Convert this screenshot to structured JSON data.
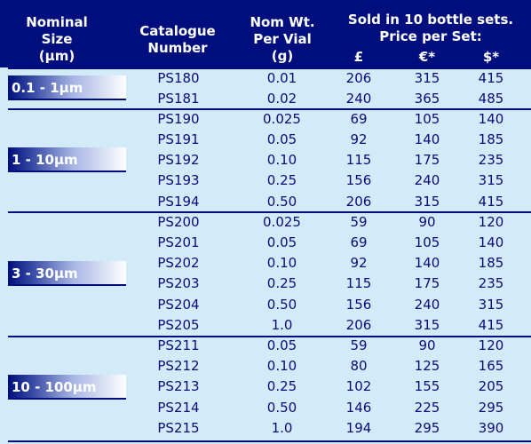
{
  "header": {
    "nominal": "Nominal\nSize\n(µm)",
    "catalogue": "Catalogue\nNumber",
    "weight": "Nom Wt.\nPer Vial\n(g)",
    "sold": "Sold in 10 bottle sets.",
    "price": "Price per Set:",
    "gbp": "£",
    "eur": "€*",
    "usd": "$*"
  },
  "groups": [
    {
      "range": "0.1 - 1µm",
      "rows": [
        {
          "cat": "PS180",
          "wt": "0.01",
          "gbp": "206",
          "eur": "315",
          "usd": "415"
        },
        {
          "cat": "PS181",
          "wt": "0.02",
          "gbp": "240",
          "eur": "365",
          "usd": "485"
        }
      ]
    },
    {
      "range": "1 - 10µm",
      "rows": [
        {
          "cat": "PS190",
          "wt": "0.025",
          "gbp": "69",
          "eur": "105",
          "usd": "140"
        },
        {
          "cat": "PS191",
          "wt": "0.05",
          "gbp": "92",
          "eur": "140",
          "usd": "185"
        },
        {
          "cat": "PS192",
          "wt": "0.10",
          "gbp": "115",
          "eur": "175",
          "usd": "235"
        },
        {
          "cat": "PS193",
          "wt": "0.25",
          "gbp": "156",
          "eur": "240",
          "usd": "315"
        },
        {
          "cat": "PS194",
          "wt": "0.50",
          "gbp": "206",
          "eur": "315",
          "usd": "415"
        }
      ]
    },
    {
      "range": "3 - 30µm",
      "rows": [
        {
          "cat": "PS200",
          "wt": "0.025",
          "gbp": "59",
          "eur": "90",
          "usd": "120"
        },
        {
          "cat": "PS201",
          "wt": "0.05",
          "gbp": "69",
          "eur": "105",
          "usd": "140"
        },
        {
          "cat": "PS202",
          "wt": "0.10",
          "gbp": "92",
          "eur": "140",
          "usd": "185"
        },
        {
          "cat": "PS203",
          "wt": "0.25",
          "gbp": "115",
          "eur": "175",
          "usd": "235"
        },
        {
          "cat": "PS204",
          "wt": "0.50",
          "gbp": "156",
          "eur": "240",
          "usd": "315"
        },
        {
          "cat": "PS205",
          "wt": "1.0",
          "gbp": "206",
          "eur": "315",
          "usd": "415"
        }
      ]
    },
    {
      "range": "10 - 100µm",
      "rows": [
        {
          "cat": "PS211",
          "wt": "0.05",
          "gbp": "59",
          "eur": "90",
          "usd": "120"
        },
        {
          "cat": "PS212",
          "wt": "0.10",
          "gbp": "80",
          "eur": "125",
          "usd": "165"
        },
        {
          "cat": "PS213",
          "wt": "0.25",
          "gbp": "102",
          "eur": "155",
          "usd": "205"
        },
        {
          "cat": "PS214",
          "wt": "0.50",
          "gbp": "146",
          "eur": "225",
          "usd": "295"
        },
        {
          "cat": "PS215",
          "wt": "1.0",
          "gbp": "194",
          "eur": "295",
          "usd": "390"
        }
      ]
    }
  ],
  "colors": {
    "header_bg": "#000f7d",
    "page_bg": "#d3ebf9",
    "text": "#0b0b7a"
  }
}
